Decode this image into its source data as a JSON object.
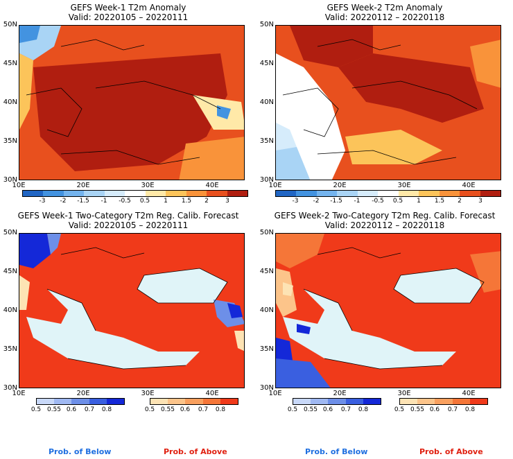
{
  "panels": [
    {
      "title": "GEFS Week-1 T2m Anomaly",
      "valid": "Valid: 20220105 – 20220111"
    },
    {
      "title": "GEFS Week-2 T2m Anomaly",
      "valid": "Valid: 20220112 – 20220118"
    },
    {
      "title": "GEFS Week-1 Two-Category T2m Reg. Calib. Forecast",
      "valid": "Valid: 20220105 – 20220111"
    },
    {
      "title": "GEFS Week-2 Two-Category T2m Reg. Calib. Forecast",
      "valid": "Valid: 20220112 – 20220118"
    }
  ],
  "axes": {
    "lat_labels": [
      "50N",
      "45N",
      "40N",
      "35N",
      "30N"
    ],
    "lon_labels": [
      "10E",
      "20E",
      "30E",
      "40E"
    ]
  },
  "anomaly_colorbar": {
    "labels": [
      "-3",
      "-2",
      "-1.5",
      "-1",
      "-0.5",
      "0.5",
      "1",
      "1.5",
      "2",
      "3"
    ],
    "colors": [
      "#2166c4",
      "#4393e0",
      "#74b4ee",
      "#a9d4f5",
      "#d6ecfb",
      "#ffffff",
      "#ffe9a8",
      "#fcc45a",
      "#f9933a",
      "#e8501e",
      "#b01e10"
    ]
  },
  "prob_below": {
    "labels": [
      "0.5",
      "0.55",
      "0.6",
      "0.7",
      "0.8"
    ],
    "colors": [
      "#c8d8f8",
      "#9fb8f2",
      "#6d8fe8",
      "#3a5fe0",
      "#1428d8"
    ]
  },
  "prob_above": {
    "labels": [
      "0.5",
      "0.55",
      "0.6",
      "0.7",
      "0.8"
    ],
    "colors": [
      "#fde3b4",
      "#fcc48a",
      "#f9a05e",
      "#f57638",
      "#f03a1a"
    ]
  },
  "footer": {
    "below_label": "Prob. of Below",
    "above_label": "Prob. of Above",
    "below_color": "#1f6fe0",
    "above_color": "#e02010"
  },
  "map_colors": {
    "deep_warm": "#b01e10",
    "warm": "#e8501e",
    "mid_warm": "#f9933a",
    "light_warm": "#fcc45a",
    "pale": "#ffe9a8",
    "neutral": "#ffffff",
    "cool": "#a9d4f5",
    "cooler": "#4393e0",
    "sea_prob": "#e0f4f8",
    "above_prob": "#f03a1a"
  }
}
